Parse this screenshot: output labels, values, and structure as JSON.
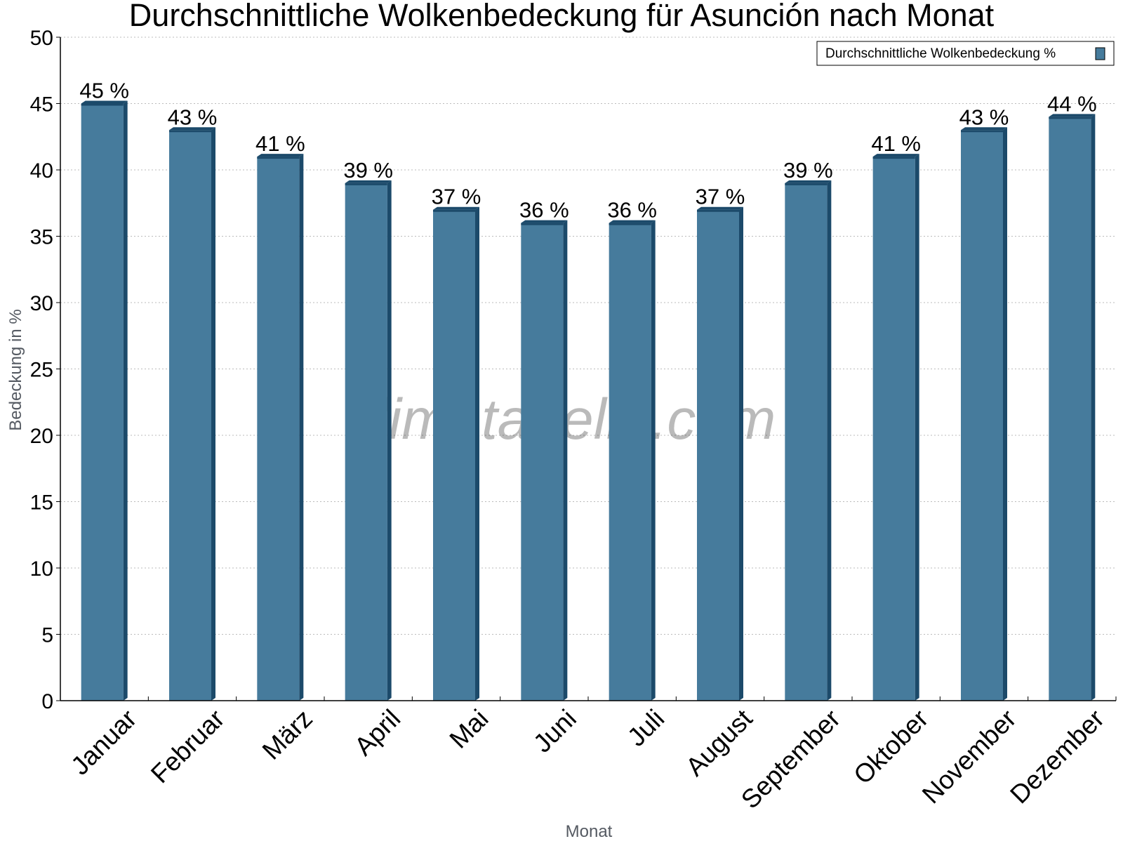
{
  "chart_data": {
    "type": "bar",
    "title": "Durchschnittliche Wolkenbedeckung für Asunción nach Monat",
    "xlabel": "Monat",
    "ylabel": "Bedeckung in %",
    "categories": [
      "Januar",
      "Februar",
      "März",
      "April",
      "Mai",
      "Juni",
      "Juli",
      "August",
      "September",
      "Oktober",
      "November",
      "Dezember"
    ],
    "series": [
      {
        "name": "Durchschnittliche Wolkenbedeckung %",
        "values": [
          45,
          43,
          41,
          39,
          37,
          36,
          36,
          37,
          39,
          41,
          43,
          44
        ],
        "color": "#467b9c",
        "side_color": "#1c4a6a"
      }
    ],
    "data_labels": [
      "45 %",
      "43 %",
      "41 %",
      "39 %",
      "37 %",
      "36 %",
      "36 %",
      "37 %",
      "39 %",
      "41 %",
      "43 %",
      "44 %"
    ],
    "ylim": [
      0,
      50
    ],
    "y_ticks": [
      0,
      5,
      10,
      15,
      20,
      25,
      30,
      35,
      40,
      45,
      50
    ],
    "grid": true,
    "legend_position": "top-right",
    "watermark": "klimatabelle.com"
  }
}
